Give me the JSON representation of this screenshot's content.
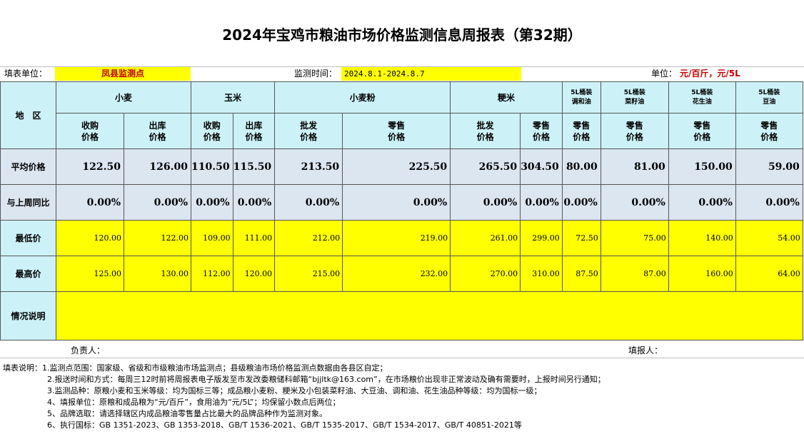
{
  "title": "2024年宝鸡市粮油市场价格监测信息周报表（第32期）",
  "info": {
    "unit_label": "填表单位：",
    "unit_value": "凤县监测点",
    "time_label": "监测时间：",
    "time_value": "2024.8.1-2024.8.7",
    "price_unit_label": "单位：",
    "price_unit_value": "元/百斤，元/5L"
  },
  "header": {
    "region": "地　区",
    "wheat": "小麦",
    "corn": "玉米",
    "flour": "小麦粉",
    "rice": "粳米",
    "blend_oil": "5L桶装\n调和油",
    "rapeseed_oil": "5L桶装\n菜籽油",
    "peanut_oil": "5L桶装\n花生油",
    "soy_oil": "5L桶装\n豆油",
    "sub": [
      "收购\n价格",
      "出库\n价格",
      "收购\n价格",
      "出库\n价格",
      "批发\n价格",
      "零售\n价格",
      "批发\n价格",
      "零售\n价格",
      "零售\n价格",
      "零售\n价格",
      "零售\n价格",
      "零售\n价格"
    ]
  },
  "rows": {
    "avg": {
      "label": "平均价格",
      "values": [
        "122.50",
        "126.00",
        "110.50",
        "115.50",
        "213.50",
        "225.50",
        "265.50",
        "304.50",
        "80.00",
        "81.00",
        "150.00",
        "59.00"
      ]
    },
    "change": {
      "label": "与上周同比",
      "values": [
        "0.00%",
        "0.00%",
        "0.00%",
        "0.00%",
        "0.00%",
        "0.00%",
        "0.00%",
        "0.00%",
        "0.00%",
        "0.00%",
        "0.00%",
        "0.00%"
      ]
    },
    "min": {
      "label": "最低价",
      "values": [
        "120.00",
        "122.00",
        "109.00",
        "111.00",
        "212.00",
        "219.00",
        "261.00",
        "299.00",
        "72.50",
        "75.00",
        "140.00",
        "54.00"
      ]
    },
    "max": {
      "label": "最高价",
      "values": [
        "125.00",
        "130.00",
        "112.00",
        "120.00",
        "215.00",
        "232.00",
        "270.00",
        "310.00",
        "87.50",
        "87.00",
        "160.00",
        "64.00"
      ]
    },
    "remark": {
      "label": "情况说明",
      "value": ""
    }
  },
  "sign": {
    "responsible": "负责人：",
    "filler": "填报人："
  },
  "notes": [
    "填表说明：1.监测点范围：国家级、省级和市级粮油市场监测点；县级粮油市场价格监测点数据由各县区自定；",
    "2.报送时间和方式：每周三12时前将周报表电子版发至市发改委粮储科邮箱“bjjltk@163.com”，在市场粮价出现非正常波动及确有需要时，上报时间另行通知；",
    "3.监测品种：原粮小麦和玉米等级：均为国标三等；成品粮小麦粉、粳米及小包装菜籽油、大豆油、调和油、花生油品种等级：均为国标一级；",
    "4、填报单位：原粮和成品粮为“元/百斤”，食用油为“元/5L”；均保留小数点后两位；",
    "5、品牌选取：请选择辖区内成品粮油零售量占比最大的品牌品种作为监测对象。",
    "6、执行国标：GB 1351-2023、GB 1353-2018、GB/T 1536-2021、GB/T 1535-2017、GB/T 1534-2017、GB/T 40851-2021等"
  ],
  "colors": {
    "yellow": "#ffff00",
    "cyan": "#ccf2f8",
    "gray": "#dce6f1"
  }
}
